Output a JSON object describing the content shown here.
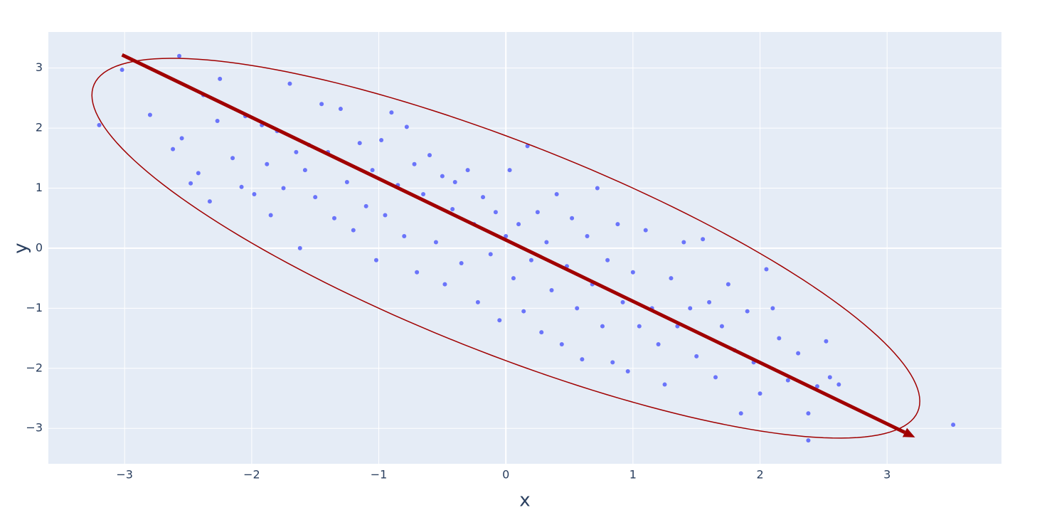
{
  "chart_data": {
    "type": "scatter",
    "x_title": "x",
    "y_title": "y",
    "color": "#636efa",
    "grid": true,
    "xlim": [
      -3.6,
      3.9
    ],
    "ylim": [
      -3.59,
      3.6
    ],
    "xticks": [
      {
        "value": -3,
        "label": "−3"
      },
      {
        "value": -2,
        "label": "−2"
      },
      {
        "value": -1,
        "label": "−1"
      },
      0,
      1,
      2,
      3
    ],
    "yticks": [
      {
        "value": -3,
        "label": "−3"
      },
      {
        "value": -2,
        "label": "−2"
      },
      {
        "value": -1,
        "label": "−1"
      },
      0,
      1,
      2,
      3
    ],
    "x": [
      -3.2,
      -3.02,
      -2.8,
      -2.57,
      -2.62,
      -2.55,
      -2.48,
      -2.42,
      -2.38,
      -2.33,
      -2.27,
      -2.25,
      -2.15,
      -2.08,
      -2.05,
      -1.98,
      -1.92,
      -1.88,
      -1.85,
      -1.8,
      -1.75,
      -1.7,
      -1.65,
      -1.62,
      -1.58,
      -1.55,
      -1.5,
      -1.45,
      -1.4,
      -1.35,
      -1.3,
      -1.25,
      -1.2,
      -1.15,
      -1.1,
      -1.05,
      -1.02,
      -0.98,
      -0.95,
      -0.9,
      -0.85,
      -0.8,
      -0.78,
      -0.72,
      -0.7,
      -0.65,
      -0.6,
      -0.55,
      -0.5,
      -0.48,
      -0.42,
      -0.4,
      -0.35,
      -0.3,
      -0.25,
      -0.22,
      -0.18,
      -0.12,
      -0.08,
      -0.05,
      0.0,
      0.03,
      0.06,
      0.1,
      0.14,
      0.17,
      0.2,
      0.25,
      0.28,
      0.32,
      0.36,
      0.4,
      0.44,
      0.48,
      0.52,
      0.56,
      0.6,
      0.64,
      0.68,
      0.72,
      0.76,
      0.8,
      0.84,
      0.88,
      0.92,
      0.96,
      1.0,
      1.05,
      1.1,
      1.15,
      1.2,
      1.25,
      1.3,
      1.35,
      1.4,
      1.45,
      1.5,
      1.55,
      1.6,
      1.65,
      1.7,
      1.75,
      1.8,
      1.85,
      1.9,
      1.95,
      2.0,
      2.05,
      2.1,
      2.15,
      2.22,
      2.3,
      2.38,
      2.38,
      2.45,
      2.52,
      2.55,
      2.62,
      3.52
    ],
    "values": [
      2.05,
      2.97,
      2.22,
      3.2,
      1.65,
      1.83,
      1.08,
      1.25,
      2.55,
      0.78,
      2.12,
      2.82,
      1.5,
      1.02,
      2.2,
      0.9,
      2.05,
      1.4,
      0.55,
      1.95,
      1.0,
      2.74,
      1.6,
      0.0,
      1.3,
      1.72,
      0.85,
      2.4,
      1.6,
      0.5,
      2.32,
      1.1,
      0.3,
      1.75,
      0.7,
      1.3,
      -0.2,
      1.8,
      0.55,
      2.26,
      1.05,
      0.2,
      2.02,
      1.4,
      -0.4,
      0.9,
      1.55,
      0.1,
      1.2,
      -0.6,
      0.65,
      1.1,
      -0.25,
      1.3,
      0.4,
      -0.9,
      0.85,
      -0.1,
      0.6,
      -1.2,
      0.2,
      1.3,
      -0.5,
      0.4,
      -1.05,
      1.7,
      -0.2,
      0.6,
      -1.4,
      0.1,
      -0.7,
      0.9,
      -1.6,
      -0.3,
      0.5,
      -1.0,
      -1.85,
      0.2,
      -0.6,
      1.0,
      -1.3,
      -0.2,
      -1.9,
      0.4,
      -0.9,
      -2.05,
      -0.4,
      -1.3,
      0.3,
      -1.0,
      -1.6,
      -2.27,
      -0.5,
      -1.3,
      0.1,
      -1.0,
      -1.8,
      0.15,
      -0.9,
      -2.15,
      -1.3,
      -0.6,
      -1.7,
      -2.75,
      -1.05,
      -1.9,
      -2.42,
      -0.35,
      -1.0,
      -1.5,
      -2.2,
      -1.75,
      -3.2,
      -2.75,
      -2.3,
      -1.55,
      -2.15,
      -2.27,
      -2.94
    ],
    "arrow": {
      "color": "#a00000",
      "x": [
        -3.02,
        3.22
      ],
      "y": [
        3.22,
        -3.15
      ]
    },
    "ellipse": {
      "color": "#a00000",
      "center": [
        0,
        0
      ],
      "axis1": [
        3.1,
        -3.0
      ],
      "axis2": [
        1.0,
        1.0
      ]
    }
  }
}
